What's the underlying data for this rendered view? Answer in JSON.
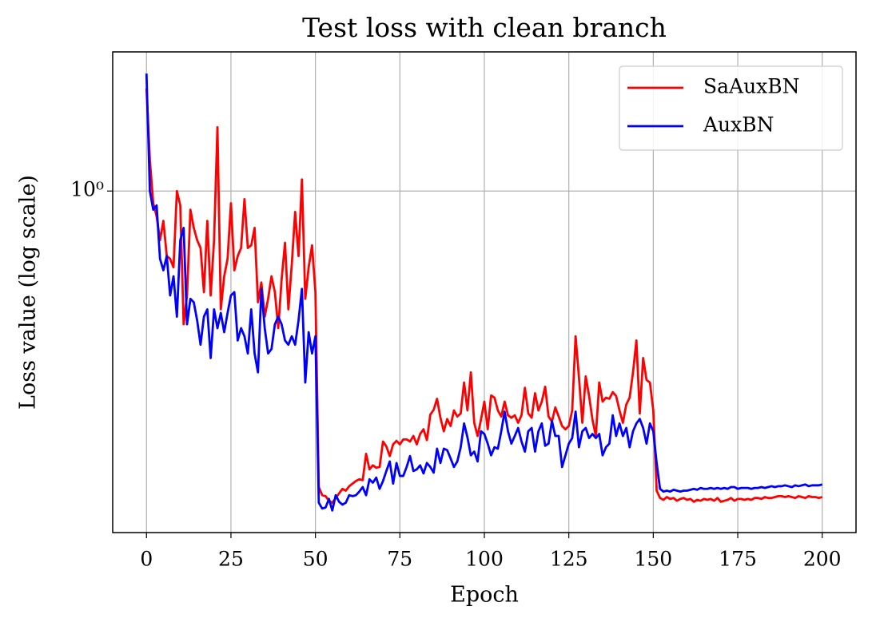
{
  "chart_data": {
    "type": "line",
    "title": "Test loss with clean branch",
    "xlabel": "Epoch",
    "ylabel": "Loss value (log scale)",
    "yscale": "log",
    "grid": true,
    "legend": "upper right",
    "xlim": [
      -10,
      210
    ],
    "xticks": [
      0,
      25,
      50,
      75,
      100,
      125,
      150,
      175,
      200
    ],
    "ylim": [
      0.178,
      2.02
    ],
    "yticks": [
      {
        "value": 1,
        "label": "10⁰"
      }
    ],
    "x": [
      0,
      1,
      2,
      3,
      4,
      5,
      6,
      7,
      8,
      9,
      10,
      11,
      12,
      13,
      14,
      15,
      16,
      17,
      18,
      19,
      20,
      21,
      22,
      23,
      24,
      25,
      26,
      27,
      28,
      29,
      30,
      31,
      32,
      33,
      34,
      35,
      36,
      37,
      38,
      39,
      40,
      41,
      42,
      43,
      44,
      45,
      46,
      47,
      48,
      49,
      50,
      51,
      52,
      53,
      54,
      55,
      56,
      57,
      58,
      59,
      60,
      61,
      62,
      63,
      64,
      65,
      66,
      67,
      68,
      69,
      70,
      71,
      72,
      73,
      74,
      75,
      76,
      77,
      78,
      79,
      80,
      81,
      82,
      83,
      84,
      85,
      86,
      87,
      88,
      89,
      90,
      91,
      92,
      93,
      94,
      95,
      96,
      97,
      98,
      99,
      100,
      101,
      102,
      103,
      104,
      105,
      106,
      107,
      108,
      109,
      110,
      111,
      112,
      113,
      114,
      115,
      116,
      117,
      118,
      119,
      120,
      121,
      122,
      123,
      124,
      125,
      126,
      127,
      128,
      129,
      130,
      131,
      132,
      133,
      134,
      135,
      136,
      137,
      138,
      139,
      140,
      141,
      142,
      143,
      144,
      145,
      146,
      147,
      148,
      149,
      150,
      151,
      152,
      153,
      154,
      155,
      156,
      157,
      158,
      159,
      160,
      161,
      162,
      163,
      164,
      165,
      166,
      167,
      168,
      169,
      170,
      171,
      172,
      173,
      174,
      175,
      176,
      177,
      178,
      179,
      180,
      181,
      182,
      183,
      184,
      185,
      186,
      187,
      188,
      189,
      190,
      191,
      192,
      193,
      194,
      195,
      196,
      197,
      198,
      199,
      200
    ],
    "series": [
      {
        "name": "SaAuxBN",
        "color": "#ff0000",
        "values": [
          1.68,
          1.17,
          0.94,
          0.88,
          0.78,
          0.86,
          0.72,
          0.71,
          0.68,
          1.0,
          0.93,
          0.51,
          0.59,
          0.91,
          0.83,
          0.78,
          0.75,
          0.6,
          0.86,
          0.59,
          0.78,
          1.38,
          0.55,
          0.65,
          0.71,
          0.94,
          0.67,
          0.72,
          0.75,
          0.96,
          0.75,
          0.76,
          0.83,
          0.57,
          0.63,
          0.53,
          0.58,
          0.65,
          0.6,
          0.5,
          0.64,
          0.77,
          0.55,
          0.69,
          0.9,
          0.72,
          1.06,
          0.58,
          0.68,
          0.76,
          0.6,
          0.224,
          0.215,
          0.214,
          0.209,
          0.207,
          0.212,
          0.217,
          0.222,
          0.22,
          0.225,
          0.228,
          0.231,
          0.233,
          0.232,
          0.265,
          0.245,
          0.25,
          0.247,
          0.248,
          0.282,
          0.275,
          0.262,
          0.278,
          0.283,
          0.278,
          0.285,
          0.285,
          0.282,
          0.29,
          0.278,
          0.293,
          0.3,
          0.284,
          0.323,
          0.331,
          0.35,
          0.318,
          0.297,
          0.316,
          0.305,
          0.33,
          0.32,
          0.325,
          0.38,
          0.33,
          0.4,
          0.31,
          0.29,
          0.315,
          0.345,
          0.3,
          0.356,
          0.352,
          0.33,
          0.32,
          0.345,
          0.322,
          0.318,
          0.322,
          0.31,
          0.322,
          0.37,
          0.325,
          0.318,
          0.36,
          0.33,
          0.345,
          0.372,
          0.32,
          0.312,
          0.335,
          0.32,
          0.305,
          0.3,
          0.305,
          0.33,
          0.48,
          0.39,
          0.31,
          0.392,
          0.355,
          0.315,
          0.29,
          0.38,
          0.345,
          0.352,
          0.35,
          0.362,
          0.355,
          0.33,
          0.31,
          0.34,
          0.352,
          0.4,
          0.47,
          0.325,
          0.43,
          0.385,
          0.38,
          0.33,
          0.22,
          0.212,
          0.21,
          0.213,
          0.211,
          0.212,
          0.209,
          0.211,
          0.212,
          0.21,
          0.211,
          0.208,
          0.21,
          0.209,
          0.211,
          0.21,
          0.211,
          0.209,
          0.212,
          0.208,
          0.209,
          0.21,
          0.212,
          0.209,
          0.211,
          0.211,
          0.21,
          0.211,
          0.21,
          0.212,
          0.212,
          0.211,
          0.213,
          0.212,
          0.212,
          0.213,
          0.214,
          0.214,
          0.213,
          0.214,
          0.213,
          0.212,
          0.214,
          0.213,
          0.212,
          0.214,
          0.213,
          0.213,
          0.212,
          0.213
        ]
      },
      {
        "name": "AuxBN",
        "color": "#0000ff",
        "values": [
          1.81,
          1.0,
          0.91,
          0.93,
          0.71,
          0.67,
          0.72,
          0.59,
          0.65,
          0.53,
          0.78,
          0.83,
          0.51,
          0.58,
          0.57,
          0.52,
          0.46,
          0.53,
          0.55,
          0.43,
          0.55,
          0.5,
          0.54,
          0.49,
          0.54,
          0.59,
          0.6,
          0.47,
          0.5,
          0.48,
          0.44,
          0.55,
          0.44,
          0.4,
          0.61,
          0.5,
          0.44,
          0.45,
          0.51,
          0.53,
          0.51,
          0.47,
          0.46,
          0.48,
          0.46,
          0.52,
          0.61,
          0.38,
          0.49,
          0.44,
          0.48,
          0.207,
          0.201,
          0.202,
          0.211,
          0.199,
          0.215,
          0.208,
          0.205,
          0.207,
          0.215,
          0.214,
          0.215,
          0.219,
          0.224,
          0.215,
          0.233,
          0.229,
          0.235,
          0.222,
          0.231,
          0.243,
          0.255,
          0.228,
          0.253,
          0.237,
          0.237,
          0.248,
          0.262,
          0.243,
          0.245,
          0.25,
          0.24,
          0.253,
          0.248,
          0.241,
          0.272,
          0.253,
          0.272,
          0.27,
          0.259,
          0.248,
          0.255,
          0.274,
          0.309,
          0.288,
          0.263,
          0.268,
          0.255,
          0.297,
          0.293,
          0.279,
          0.263,
          0.274,
          0.272,
          0.297,
          0.328,
          0.297,
          0.279,
          0.29,
          0.302,
          0.282,
          0.268,
          0.297,
          0.302,
          0.268,
          0.297,
          0.309,
          0.276,
          0.279,
          0.313,
          0.29,
          0.29,
          0.248,
          0.263,
          0.279,
          0.287,
          0.328,
          0.274,
          0.297,
          0.302,
          0.287,
          0.293,
          0.287,
          0.293,
          0.263,
          0.274,
          0.279,
          0.322,
          0.29,
          0.309,
          0.29,
          0.302,
          0.274,
          0.297,
          0.309,
          0.316,
          0.302,
          0.279,
          0.309,
          0.297,
          0.253,
          0.222,
          0.219,
          0.22,
          0.219,
          0.221,
          0.22,
          0.219,
          0.22,
          0.22,
          0.221,
          0.222,
          0.221,
          0.223,
          0.222,
          0.222,
          0.223,
          0.222,
          0.223,
          0.222,
          0.223,
          0.222,
          0.224,
          0.224,
          0.222,
          0.223,
          0.223,
          0.223,
          0.222,
          0.223,
          0.223,
          0.224,
          0.223,
          0.224,
          0.225,
          0.224,
          0.225,
          0.225,
          0.226,
          0.225,
          0.224,
          0.226,
          0.225,
          0.226,
          0.227,
          0.225,
          0.226,
          0.226,
          0.226,
          0.227
        ]
      }
    ]
  }
}
